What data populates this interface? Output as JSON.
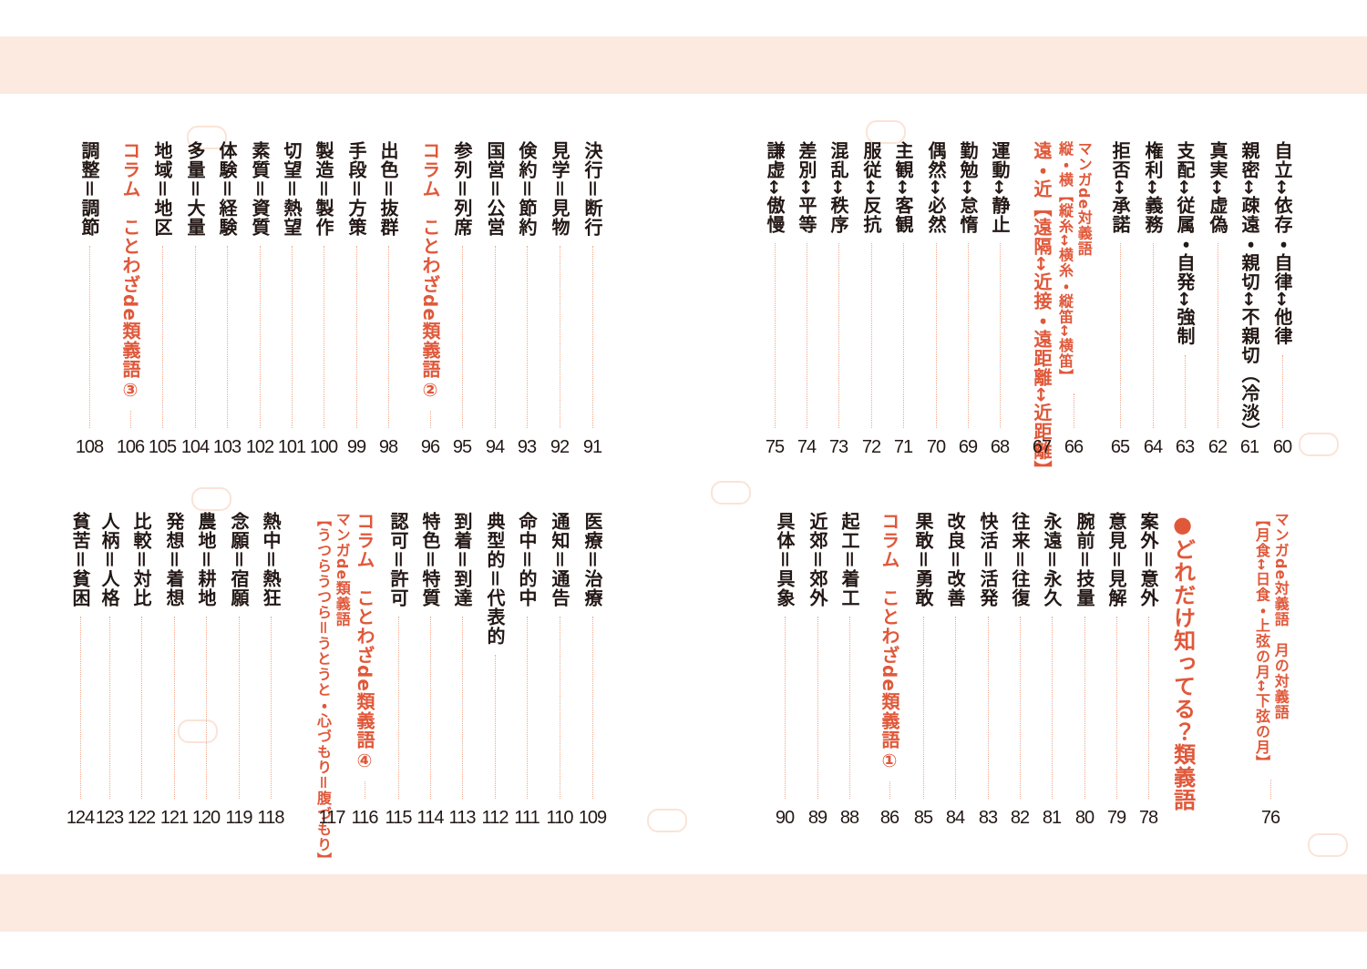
{
  "blocks": [
    {
      "entries": [
        {
          "lines": [
            "自立↔依存・自律↔他律"
          ],
          "page": 60
        },
        {
          "lines": [
            "親密↔疎遠・親切↔不親切（冷淡）"
          ],
          "page": 61
        },
        {
          "lines": [
            "真実↔虚偽"
          ],
          "page": 62
        },
        {
          "lines": [
            "支配↔従属・自発↔強制"
          ],
          "page": 63
        },
        {
          "lines": [
            "権利↔義務"
          ],
          "page": 64
        },
        {
          "lines": [
            "拒否↔承諾"
          ],
          "page": 65
        },
        {
          "lines": [
            "マンガde対義語",
            "縦・横【縦糸↔横糸・縦笛↔横笛】"
          ],
          "page": 66,
          "color": "#e0583a"
        },
        {
          "lines": [
            "遠・近【遠隔↔近接・遠距離↔近距離】"
          ],
          "page": 67,
          "color": "#e0583a"
        },
        {
          "lines": [
            "運動↔静止"
          ],
          "page": 68
        },
        {
          "lines": [
            "勤勉↔怠惰"
          ],
          "page": 69
        },
        {
          "lines": [
            "偶然↔必然"
          ],
          "page": 70
        },
        {
          "lines": [
            "主観↔客観"
          ],
          "page": 71
        },
        {
          "lines": [
            "服従↔反抗"
          ],
          "page": 72
        },
        {
          "lines": [
            "混乱↔秩序"
          ],
          "page": 73
        },
        {
          "lines": [
            "差別↔平等"
          ],
          "page": 74
        },
        {
          "lines": [
            "謙虚↔傲慢"
          ],
          "page": 75
        }
      ]
    },
    {
      "entries": [
        {
          "lines": [
            "決行＝断行"
          ],
          "page": 91
        },
        {
          "lines": [
            "見学＝見物"
          ],
          "page": 92
        },
        {
          "lines": [
            "倹約＝節約"
          ],
          "page": 93
        },
        {
          "lines": [
            "国営＝公営"
          ],
          "page": 94
        },
        {
          "lines": [
            "参列＝列席"
          ],
          "page": 95
        },
        {
          "lines": [
            "コラム　ことわざde類義語②"
          ],
          "page": 96,
          "color": "#e0583a"
        },
        {
          "lines": [
            "出色＝抜群"
          ],
          "page": 98
        },
        {
          "lines": [
            "手段＝方策"
          ],
          "page": 99
        },
        {
          "lines": [
            "製造＝製作"
          ],
          "page": 100
        },
        {
          "lines": [
            "切望＝熱望"
          ],
          "page": 101
        },
        {
          "lines": [
            "素質＝資質"
          ],
          "page": 102
        },
        {
          "lines": [
            "体験＝経験"
          ],
          "page": 103
        },
        {
          "lines": [
            "多量＝大量"
          ],
          "page": 104
        },
        {
          "lines": [
            "地域＝地区"
          ],
          "page": 105
        },
        {
          "lines": [
            "コラム　ことわざde類義語③"
          ],
          "page": 106,
          "color": "#e0583a"
        },
        {
          "lines": [
            "調整＝調節"
          ],
          "page": 108
        }
      ]
    },
    {
      "entries": [
        {
          "lines": [
            "マンガde対義語　月の対義語",
            "【月食↔日食・上弦の月↔下弦の月】"
          ],
          "page": 76,
          "color": "#e0583a"
        },
        {
          "lines": [
            "●どれだけ知ってる？類義語"
          ],
          "color": "#e0583a"
        },
        {
          "lines": [
            "案外＝意外"
          ],
          "page": 78
        },
        {
          "lines": [
            "意見＝見解"
          ],
          "page": 79
        },
        {
          "lines": [
            "腕前＝技量"
          ],
          "page": 80
        },
        {
          "lines": [
            "永遠＝永久"
          ],
          "page": 81
        },
        {
          "lines": [
            "往来＝往復"
          ],
          "page": 82
        },
        {
          "lines": [
            "快活＝活発"
          ],
          "page": 83
        },
        {
          "lines": [
            "改良＝改善"
          ],
          "page": 84
        },
        {
          "lines": [
            "果敢＝勇敢"
          ],
          "page": 85
        },
        {
          "lines": [
            "コラム　ことわざde類義語①"
          ],
          "page": 86,
          "color": "#e0583a"
        },
        {
          "lines": [
            "起工＝着工"
          ],
          "page": 88
        },
        {
          "lines": [
            "近郊＝郊外"
          ],
          "page": 89
        },
        {
          "lines": [
            "具体＝具象"
          ],
          "page": 90
        }
      ]
    },
    {
      "entries": [
        {
          "lines": [
            "医療＝治療"
          ],
          "page": 109
        },
        {
          "lines": [
            "通知＝通告"
          ],
          "page": 110
        },
        {
          "lines": [
            "命中＝的中"
          ],
          "page": 111
        },
        {
          "lines": [
            "典型的＝代表的"
          ],
          "page": 112
        },
        {
          "lines": [
            "到着＝到達"
          ],
          "page": 113
        },
        {
          "lines": [
            "特色＝特質"
          ],
          "page": 114
        },
        {
          "lines": [
            "認可＝許可"
          ],
          "page": 115
        },
        {
          "lines": [
            "コラム　ことわざde類義語④"
          ],
          "page": 116,
          "color": "#e0583a"
        },
        {
          "lines": [
            "マンガde類義語",
            "【うつらうつら＝うとうと・心づもり＝腹づもり】"
          ],
          "page": 117,
          "color": "#e0583a"
        },
        {
          "lines": [
            "熱中＝熱狂"
          ],
          "page": 118
        },
        {
          "lines": [
            "念願＝宿願"
          ],
          "page": 119
        },
        {
          "lines": [
            "農地＝耕地"
          ],
          "page": 120
        },
        {
          "lines": [
            "発想＝着想"
          ],
          "page": 121
        },
        {
          "lines": [
            "比較＝対比"
          ],
          "page": 122
        },
        {
          "lines": [
            "人柄＝人格"
          ],
          "page": 123
        },
        {
          "lines": [
            "貧苦＝貧困"
          ],
          "page": 124
        }
      ]
    }
  ]
}
